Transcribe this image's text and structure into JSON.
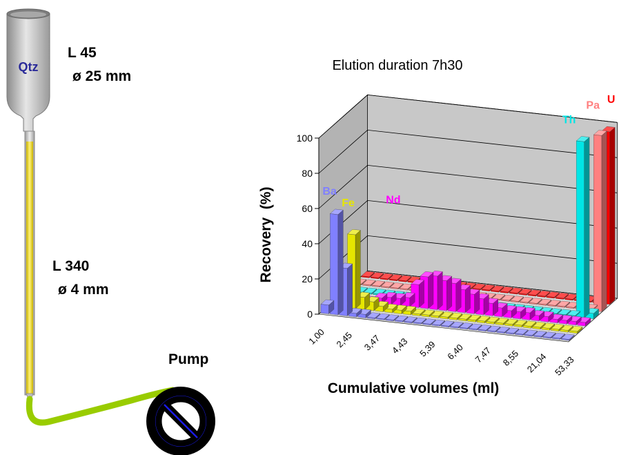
{
  "column": {
    "reservoir_label": "Qtz",
    "reservoir_length": "L 45",
    "reservoir_diameter": "ø 25 mm",
    "column_length": "L 340",
    "column_diameter": "ø 4 mm",
    "pump_label": "Pump"
  },
  "colors": {
    "Ba": "#8080ff",
    "Fe": "#e6e600",
    "Nd": "#ff00ff",
    "Th": "#00e6e6",
    "Pa": "#ff8080",
    "U": "#ff0000",
    "resin": "#f2e04a",
    "tube": "#99cc00"
  },
  "chart_data": {
    "type": "bar",
    "subtype": "3d-bar",
    "title": "Elution duration 7h30",
    "xlabel": "Cumulative volumes (ml)",
    "ylabel": "Recovery  (%)",
    "ylim": [
      0,
      100
    ],
    "yticks": [
      "0",
      "20",
      "40",
      "60",
      "80",
      "100"
    ],
    "xtick_labels": [
      "1,00",
      "2,45",
      "3,47",
      "4,43",
      "5,39",
      "6,40",
      "7,47",
      "8,55",
      "21,04",
      "53,33"
    ],
    "grid": true,
    "series": [
      {
        "name": "Ba",
        "values": [
          5,
          57,
          27,
          2,
          2,
          0,
          0,
          0,
          0,
          0,
          0,
          0,
          0,
          0,
          0,
          0,
          0,
          0,
          0,
          0,
          0,
          0,
          0,
          0,
          0,
          0,
          0
        ]
      },
      {
        "name": "Fe",
        "values": [
          0,
          0,
          42,
          7,
          5,
          3,
          2,
          2,
          2,
          1,
          1,
          1,
          1,
          1,
          1,
          1,
          1,
          1,
          1,
          1,
          1,
          1,
          1,
          1,
          1,
          1,
          1
        ]
      },
      {
        "name": "Nd",
        "values": [
          0,
          0,
          0,
          0,
          3,
          4,
          4,
          5,
          13,
          18,
          19,
          17,
          16,
          13,
          11,
          9,
          7,
          5,
          4,
          4,
          4,
          3,
          3,
          2,
          2,
          2,
          2
        ]
      },
      {
        "name": "Th",
        "values": [
          0,
          0,
          0,
          0,
          0,
          0,
          0,
          0,
          0,
          0,
          0,
          0,
          0,
          0,
          0,
          0,
          0,
          0,
          0,
          0,
          0,
          0,
          0,
          0,
          0,
          100,
          3
        ]
      },
      {
        "name": "Pa",
        "values": [
          0,
          0,
          0,
          0,
          0,
          0,
          0,
          0,
          0,
          0,
          0,
          0,
          0,
          0,
          0,
          0,
          0,
          0,
          0,
          0,
          0,
          0,
          0,
          0,
          0,
          0,
          100
        ]
      },
      {
        "name": "U",
        "values": [
          0,
          0,
          0,
          0,
          0,
          0,
          0,
          0,
          0,
          0,
          0,
          0,
          0,
          0,
          0,
          0,
          0,
          0,
          0,
          0,
          0,
          0,
          0,
          0,
          0,
          0,
          98
        ]
      }
    ]
  }
}
